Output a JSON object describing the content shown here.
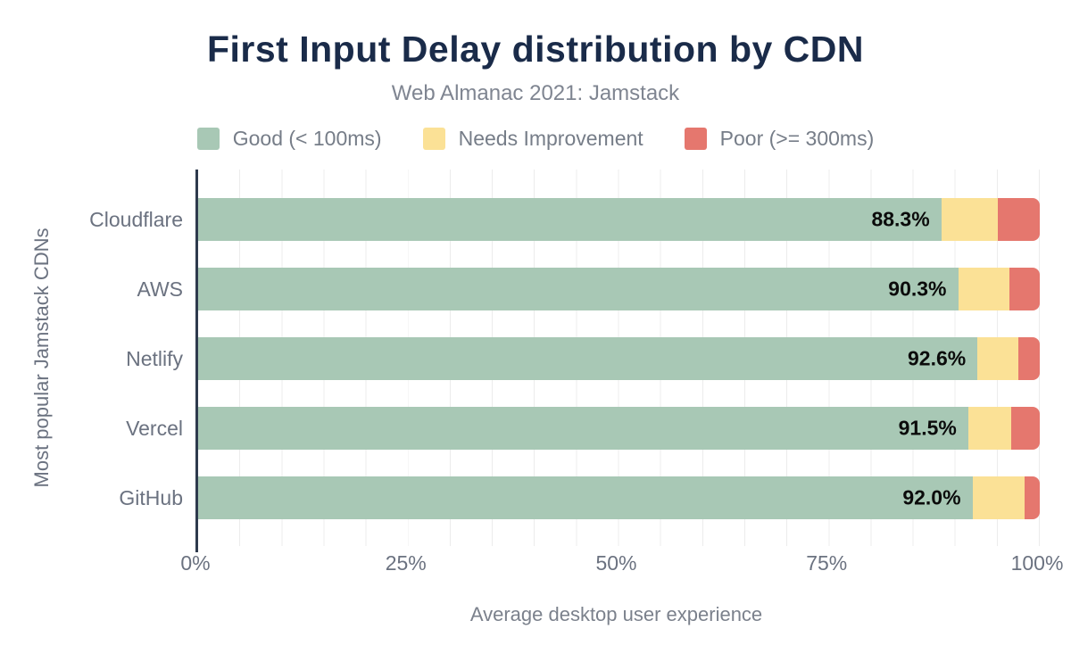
{
  "title": "First Input Delay distribution by CDN",
  "subtitle": "Web Almanac 2021: Jamstack",
  "colors": {
    "title": "#1a2b49",
    "good": "#a8c8b5",
    "needs_improvement": "#fbe196",
    "poor": "#e5776e",
    "axis_line": "#2e3a4d",
    "gridline": "#ececec",
    "muted_text": "#6b7280"
  },
  "chart_data": {
    "type": "bar",
    "orientation": "horizontal",
    "stacked": true,
    "title": "First Input Delay distribution by CDN",
    "subtitle": "Web Almanac 2021: Jamstack",
    "categories": [
      "Cloudflare",
      "AWS",
      "Netlify",
      "Vercel",
      "GitHub"
    ],
    "series": [
      {
        "name": "Good (< 100ms)",
        "color": "#a8c8b5",
        "values": [
          88.3,
          90.3,
          92.6,
          91.5,
          92.0
        ]
      },
      {
        "name": "Needs Improvement",
        "color": "#fbe196",
        "values": [
          6.7,
          6.1,
          4.9,
          5.1,
          6.2
        ]
      },
      {
        "name": "Poor (>= 300ms)",
        "color": "#e5776e",
        "values": [
          5.0,
          3.6,
          2.5,
          3.4,
          1.8
        ]
      }
    ],
    "bar_labels": [
      "88.3%",
      "90.3%",
      "92.6%",
      "91.5%",
      "92.0%"
    ],
    "xlabel": "Average desktop user experience",
    "ylabel": "Most popular Jamstack CDNs",
    "x_ticks": [
      "0%",
      "25%",
      "50%",
      "75%",
      "100%"
    ],
    "x_tick_values": [
      0,
      25,
      50,
      75,
      100
    ],
    "xlim": [
      0,
      100
    ],
    "grid": "vertical gridlines every 5%",
    "legend_position": "top"
  }
}
